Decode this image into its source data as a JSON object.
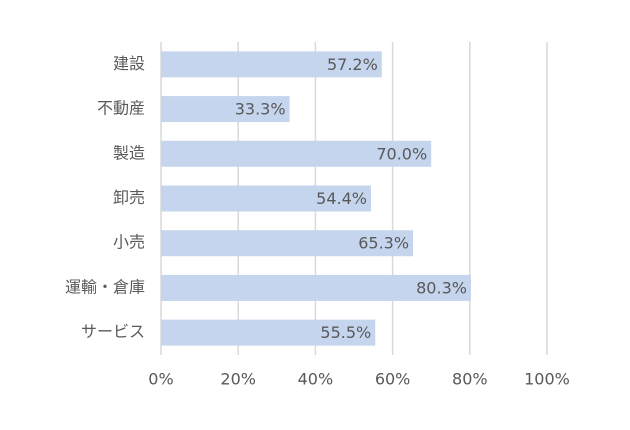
{
  "chart_data": {
    "type": "hbar",
    "categories": [
      "建設",
      "不動産",
      "製造",
      "卸売",
      "小売",
      "運輸・倉庫",
      "サービス"
    ],
    "values": [
      57.2,
      33.3,
      70.0,
      54.4,
      65.3,
      80.3,
      55.5
    ],
    "value_labels": [
      "57.2%",
      "33.3%",
      "70.0%",
      "54.4%",
      "65.3%",
      "80.3%",
      "55.5%"
    ],
    "color": "#c5d5ee",
    "xlim": [
      0,
      100
    ],
    "xticks": [
      {
        "value": 0,
        "label": "0%"
      },
      {
        "value": 20,
        "label": "20%"
      },
      {
        "value": 40,
        "label": "40%"
      },
      {
        "value": 60,
        "label": "60%"
      },
      {
        "value": 80,
        "label": "80%"
      },
      {
        "value": 100,
        "label": "100%"
      }
    ],
    "grid": true
  }
}
